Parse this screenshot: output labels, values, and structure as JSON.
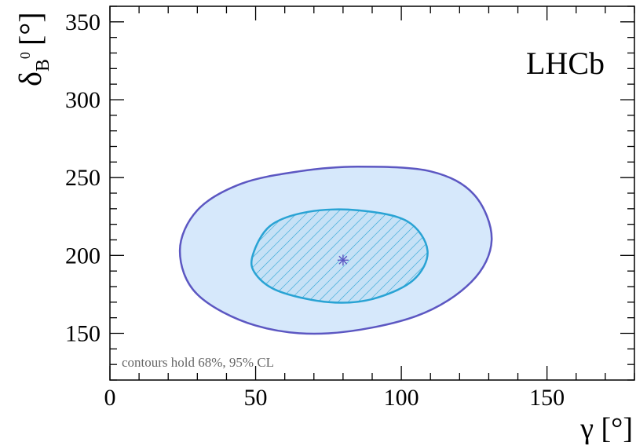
{
  "chart_data": {
    "type": "contour",
    "xlabel": "γ [°]",
    "ylabel_main": "δ",
    "ylabel_sub": "B",
    "ylabel_sup": "0",
    "ylabel_unit": "[°]",
    "xlim": [
      0,
      180
    ],
    "ylim": [
      120,
      360
    ],
    "x_ticks": [
      0,
      50,
      100,
      150
    ],
    "y_ticks": [
      150,
      200,
      250,
      300,
      350
    ],
    "experiment_label": "LHCb",
    "annotation": "contours hold 68%, 95% CL",
    "best_fit": {
      "x": 80,
      "y": 197
    },
    "contours": [
      {
        "cl": "95%",
        "fill": "#d6e8fb",
        "stroke": "#5c57c2",
        "points": [
          [
            24,
            203
          ],
          [
            30,
            229
          ],
          [
            45,
            246
          ],
          [
            65,
            254
          ],
          [
            85,
            257
          ],
          [
            110,
            254
          ],
          [
            125,
            239
          ],
          [
            131,
            210
          ],
          [
            124,
            183
          ],
          [
            105,
            161
          ],
          [
            75,
            150
          ],
          [
            50,
            155
          ],
          [
            30,
            175
          ]
        ]
      },
      {
        "cl": "68%",
        "fill": "#c6e1f6",
        "stroke": "#29a3d4",
        "hatch": "#29a3d4",
        "points": [
          [
            49,
            200
          ],
          [
            55,
            219
          ],
          [
            68,
            228
          ],
          [
            85,
            229
          ],
          [
            102,
            222
          ],
          [
            109,
            203
          ],
          [
            104,
            184
          ],
          [
            90,
            172
          ],
          [
            75,
            170
          ],
          [
            58,
            177
          ],
          [
            50,
            188
          ]
        ]
      }
    ]
  }
}
